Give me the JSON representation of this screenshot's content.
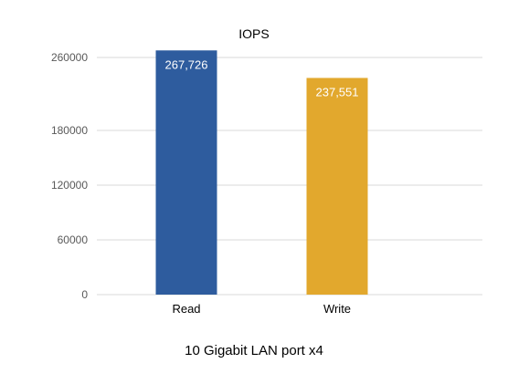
{
  "chart_data": {
    "type": "bar",
    "title": "IOPS",
    "categories": [
      "Read",
      "Write"
    ],
    "values": [
      267726,
      237551
    ],
    "data_labels": [
      "267,726",
      "237,551"
    ],
    "colors": [
      "#2e5c9e",
      "#e2a82d"
    ],
    "xlabel": "10 Gigabit LAN port x4",
    "ylabel": "",
    "ylim": [
      0,
      300000
    ],
    "yticks": [
      0,
      60000,
      120000,
      180000,
      260000
    ],
    "ytick_labels": [
      "0",
      "60000",
      "120000",
      "180000",
      "260000"
    ],
    "grid": true,
    "legend": "none"
  }
}
